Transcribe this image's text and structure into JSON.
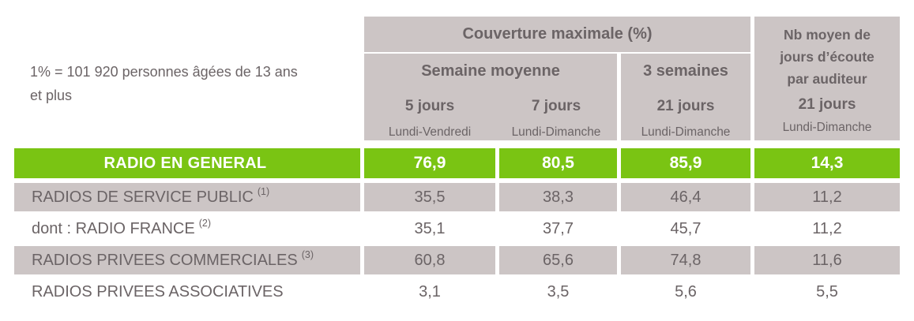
{
  "note": {
    "line1": "1% = 101 920 personnes âgées de 13 ans",
    "line2": "et plus"
  },
  "header": {
    "coverage_title": "Couverture maximale (%)",
    "week_group": {
      "title": "Semaine moyenne",
      "columns": [
        {
          "period": "5 jours",
          "days": "Lundi-Vendredi"
        },
        {
          "period": "7 jours",
          "days": "Lundi-Dimanche"
        }
      ]
    },
    "three_weeks_group": {
      "title": "3 semaines",
      "period": "21 jours",
      "days": "Lundi-Dimanche"
    },
    "avg_listening": {
      "title_lines": [
        "Nb moyen de",
        "jours d’écoute",
        "par auditeur"
      ],
      "period": "21 jours",
      "days": "Lundi-Dimanche"
    }
  },
  "rows": [
    {
      "label": "RADIO EN GENERAL",
      "sup": "",
      "values": [
        "76,9",
        "80,5",
        "85,9",
        "14,3"
      ],
      "style": "highlight"
    },
    {
      "label": "RADIOS DE SERVICE PUBLIC",
      "sup": "(1)",
      "values": [
        "35,5",
        "38,3",
        "46,4",
        "11,2"
      ],
      "style": "shaded"
    },
    {
      "label": "dont : RADIO FRANCE",
      "sup": "(2)",
      "values": [
        "35,1",
        "37,7",
        "45,7",
        "11,2"
      ],
      "style": "plain"
    },
    {
      "label": "RADIOS PRIVEES COMMERCIALES",
      "sup": "(3)",
      "values": [
        "60,8",
        "65,6",
        "74,8",
        "11,6"
      ],
      "style": "shaded"
    },
    {
      "label": "RADIOS PRIVEES ASSOCIATIVES",
      "sup": "",
      "values": [
        "3,1",
        "3,5",
        "5,6",
        "5,5"
      ],
      "style": "plain"
    }
  ],
  "colors": {
    "accent_green": "#7ac413",
    "header_gray": "#ccc5c5",
    "text_gray": "#6b6466",
    "highlight_text": "#ffffff"
  }
}
